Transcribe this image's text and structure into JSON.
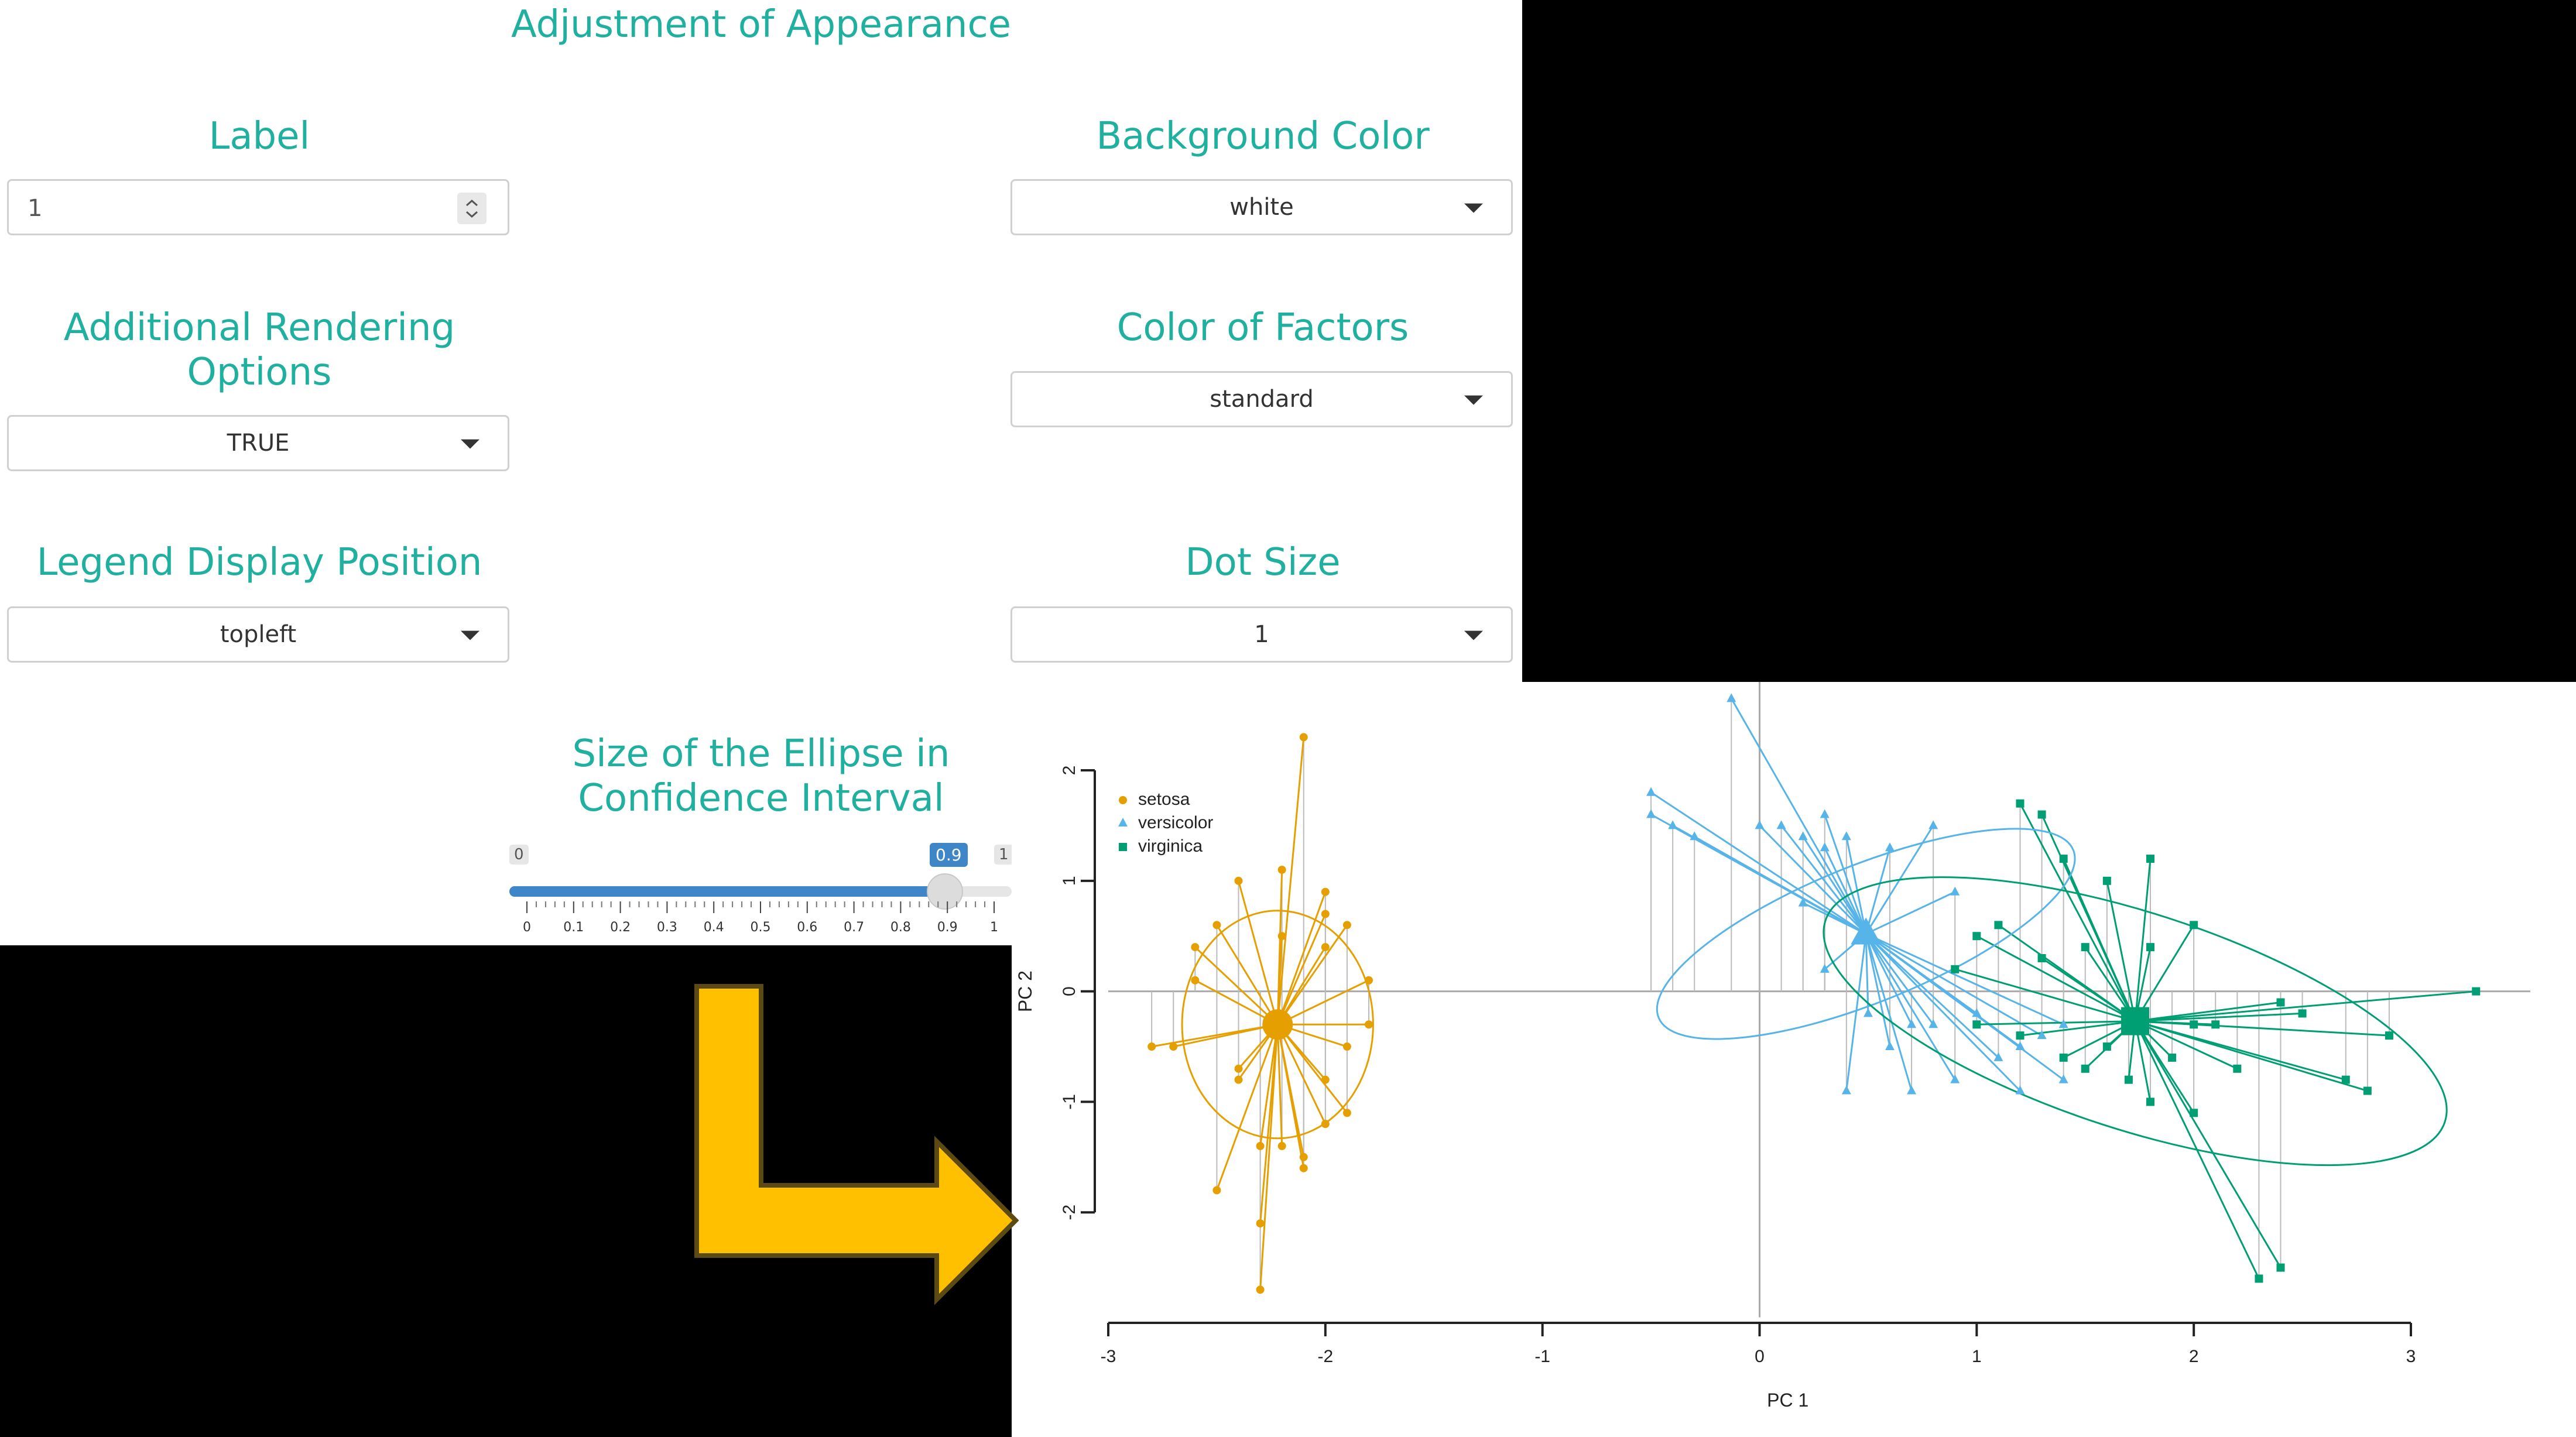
{
  "panel": {
    "title": "Adjustment of Appearance",
    "label_field": {
      "label": "Label",
      "value": "1"
    },
    "background_color": {
      "label": "Background Color",
      "value": "white"
    },
    "rendering_options": {
      "label_line1": "Additional Rendering",
      "label_line2": "Options",
      "value": "TRUE"
    },
    "factor_color": {
      "label": "Color of Factors",
      "value": "standard"
    },
    "legend_position": {
      "label": "Legend Display Position",
      "value": "topleft"
    },
    "dot_size": {
      "label": "Dot Size",
      "value": "1"
    },
    "ellipse_slider": {
      "label_line1": "Size of the Ellipse in",
      "label_line2": "Confidence Interval",
      "min_label": "0",
      "max_label": "1",
      "value": 0.9,
      "value_label": "0.9",
      "ticks": [
        "0",
        "0.1",
        "0.2",
        "0.3",
        "0.4",
        "0.5",
        "0.6",
        "0.7",
        "0.8",
        "0.9",
        "1"
      ]
    }
  },
  "colors": {
    "label_teal": "#1fb0a0",
    "slider_blue": "#3f86c9",
    "arrow_fill": "#ffc000",
    "setosa": "#e69f00",
    "versicolor": "#56b4e9",
    "virginica": "#009e73"
  },
  "chart_data": {
    "type": "scatter",
    "title": "",
    "xlabel": "PC 1",
    "ylabel": "PC 2",
    "xlim": [
      -3,
      3
    ],
    "ylim": [
      -3,
      2.8
    ],
    "xticks": [
      "-3",
      "-2",
      "-1",
      "0",
      "1",
      "2",
      "3"
    ],
    "yticks": [
      "-2",
      "-1",
      "0",
      "1",
      "2"
    ],
    "legend_position": "top-left",
    "series": [
      {
        "name": "setosa",
        "marker": "circle",
        "centroid": [
          -2.22,
          -0.3
        ],
        "ellipse": {
          "rx": 0.44,
          "ry": 1.03,
          "angle": 0
        },
        "points": [
          [
            -2.1,
            2.3
          ],
          [
            -2.7,
            -0.5
          ],
          [
            -2.5,
            -1.8
          ],
          [
            -2.3,
            -2.7
          ],
          [
            -2.4,
            1.0
          ],
          [
            -2.6,
            0.4
          ],
          [
            -2.0,
            0.7
          ],
          [
            -1.9,
            0.6
          ],
          [
            -1.8,
            -0.3
          ],
          [
            -1.9,
            -0.5
          ],
          [
            -2.3,
            -2.1
          ],
          [
            -2.1,
            -1.6
          ],
          [
            -2.0,
            -1.2
          ],
          [
            -2.2,
            1.1
          ],
          [
            -2.6,
            0.1
          ],
          [
            -2.4,
            -0.8
          ],
          [
            -1.9,
            -1.1
          ],
          [
            -2.0,
            0.9
          ],
          [
            -2.8,
            -0.5
          ],
          [
            -2.3,
            -1.4
          ],
          [
            -2.1,
            -1.5
          ],
          [
            -2.5,
            0.6
          ],
          [
            -1.8,
            0.1
          ],
          [
            -2.0,
            0.4
          ],
          [
            -2.2,
            -1.4
          ],
          [
            -2.4,
            -0.7
          ],
          [
            -2.0,
            -0.8
          ],
          [
            -2.2,
            0.5
          ]
        ]
      },
      {
        "name": "versicolor",
        "marker": "triangle",
        "centroid": [
          0.49,
          0.52
        ],
        "ellipse": {
          "rx": 1.03,
          "ry": 0.62,
          "angle": -22
        },
        "points": [
          [
            -0.13,
            2.65
          ],
          [
            -0.5,
            1.8
          ],
          [
            -0.4,
            1.5
          ],
          [
            -0.5,
            1.6
          ],
          [
            -0.3,
            1.4
          ],
          [
            0.0,
            1.5
          ],
          [
            0.1,
            1.5
          ],
          [
            0.2,
            1.4
          ],
          [
            0.3,
            1.3
          ],
          [
            0.4,
            1.4
          ],
          [
            0.3,
            1.6
          ],
          [
            0.6,
            1.3
          ],
          [
            0.2,
            0.8
          ],
          [
            0.3,
            0.2
          ],
          [
            0.5,
            -0.2
          ],
          [
            0.6,
            -0.5
          ],
          [
            0.7,
            -0.3
          ],
          [
            0.8,
            -0.3
          ],
          [
            0.9,
            -0.8
          ],
          [
            1.1,
            -0.6
          ],
          [
            1.2,
            -0.5
          ],
          [
            1.2,
            -0.9
          ],
          [
            1.4,
            -0.8
          ],
          [
            1.3,
            -0.4
          ],
          [
            1.4,
            -0.3
          ],
          [
            0.4,
            -0.9
          ],
          [
            0.7,
            -0.9
          ],
          [
            1.0,
            -0.2
          ],
          [
            0.8,
            1.5
          ],
          [
            0.9,
            0.9
          ]
        ]
      },
      {
        "name": "virginica",
        "marker": "square",
        "centroid": [
          1.73,
          -0.27
        ],
        "ellipse": {
          "rx": 1.5,
          "ry": 0.98,
          "angle": 18
        },
        "points": [
          [
            3.3,
            0.0
          ],
          [
            2.8,
            -0.9
          ],
          [
            2.7,
            -0.8
          ],
          [
            2.9,
            -0.4
          ],
          [
            2.3,
            -2.6
          ],
          [
            2.4,
            -2.5
          ],
          [
            2.0,
            -1.1
          ],
          [
            2.2,
            -0.7
          ],
          [
            2.1,
            -0.3
          ],
          [
            1.9,
            -0.6
          ],
          [
            2.0,
            -0.3
          ],
          [
            2.5,
            -0.2
          ],
          [
            2.4,
            -0.1
          ],
          [
            1.6,
            1.0
          ],
          [
            1.5,
            0.4
          ],
          [
            1.3,
            1.6
          ],
          [
            1.2,
            1.7
          ],
          [
            1.4,
            1.2
          ],
          [
            1.0,
            0.5
          ],
          [
            0.9,
            0.2
          ],
          [
            1.0,
            -0.3
          ],
          [
            1.2,
            -0.4
          ],
          [
            1.6,
            -0.5
          ],
          [
            1.8,
            -1.0
          ],
          [
            1.7,
            -0.8
          ],
          [
            2.0,
            0.6
          ],
          [
            1.8,
            1.2
          ],
          [
            1.1,
            0.6
          ],
          [
            1.3,
            0.3
          ],
          [
            1.4,
            -0.6
          ],
          [
            1.8,
            0.4
          ],
          [
            1.5,
            -0.7
          ]
        ]
      }
    ]
  }
}
